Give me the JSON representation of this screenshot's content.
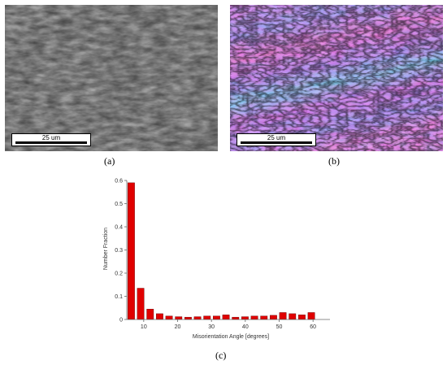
{
  "panels": {
    "a": {
      "caption": "(a)",
      "scale_label": "25 um"
    },
    "b": {
      "caption": "(b)",
      "scale_label": "25 um"
    },
    "c": {
      "caption": "(c)"
    }
  },
  "chart_data": {
    "type": "bar",
    "xlabel": "Misorientation Angle [degrees]",
    "ylabel": "Number Fraction",
    "xlim": [
      5,
      65
    ],
    "ylim": [
      0,
      0.6
    ],
    "xticks": [
      10,
      20,
      30,
      40,
      50,
      60
    ],
    "yticks": [
      0,
      0.1,
      0.2,
      0.3,
      0.4,
      0.5,
      0.6
    ],
    "bar_color": "#e00000",
    "x": [
      6.3,
      9.1,
      11.9,
      14.7,
      17.5,
      20.3,
      23.1,
      25.9,
      28.7,
      31.5,
      34.3,
      37.1,
      39.9,
      42.7,
      45.5,
      48.3,
      51.1,
      53.9,
      56.7,
      59.5
    ],
    "values": [
      0.59,
      0.135,
      0.045,
      0.025,
      0.015,
      0.012,
      0.01,
      0.012,
      0.015,
      0.015,
      0.02,
      0.01,
      0.012,
      0.015,
      0.015,
      0.018,
      0.03,
      0.025,
      0.02,
      0.03
    ]
  }
}
